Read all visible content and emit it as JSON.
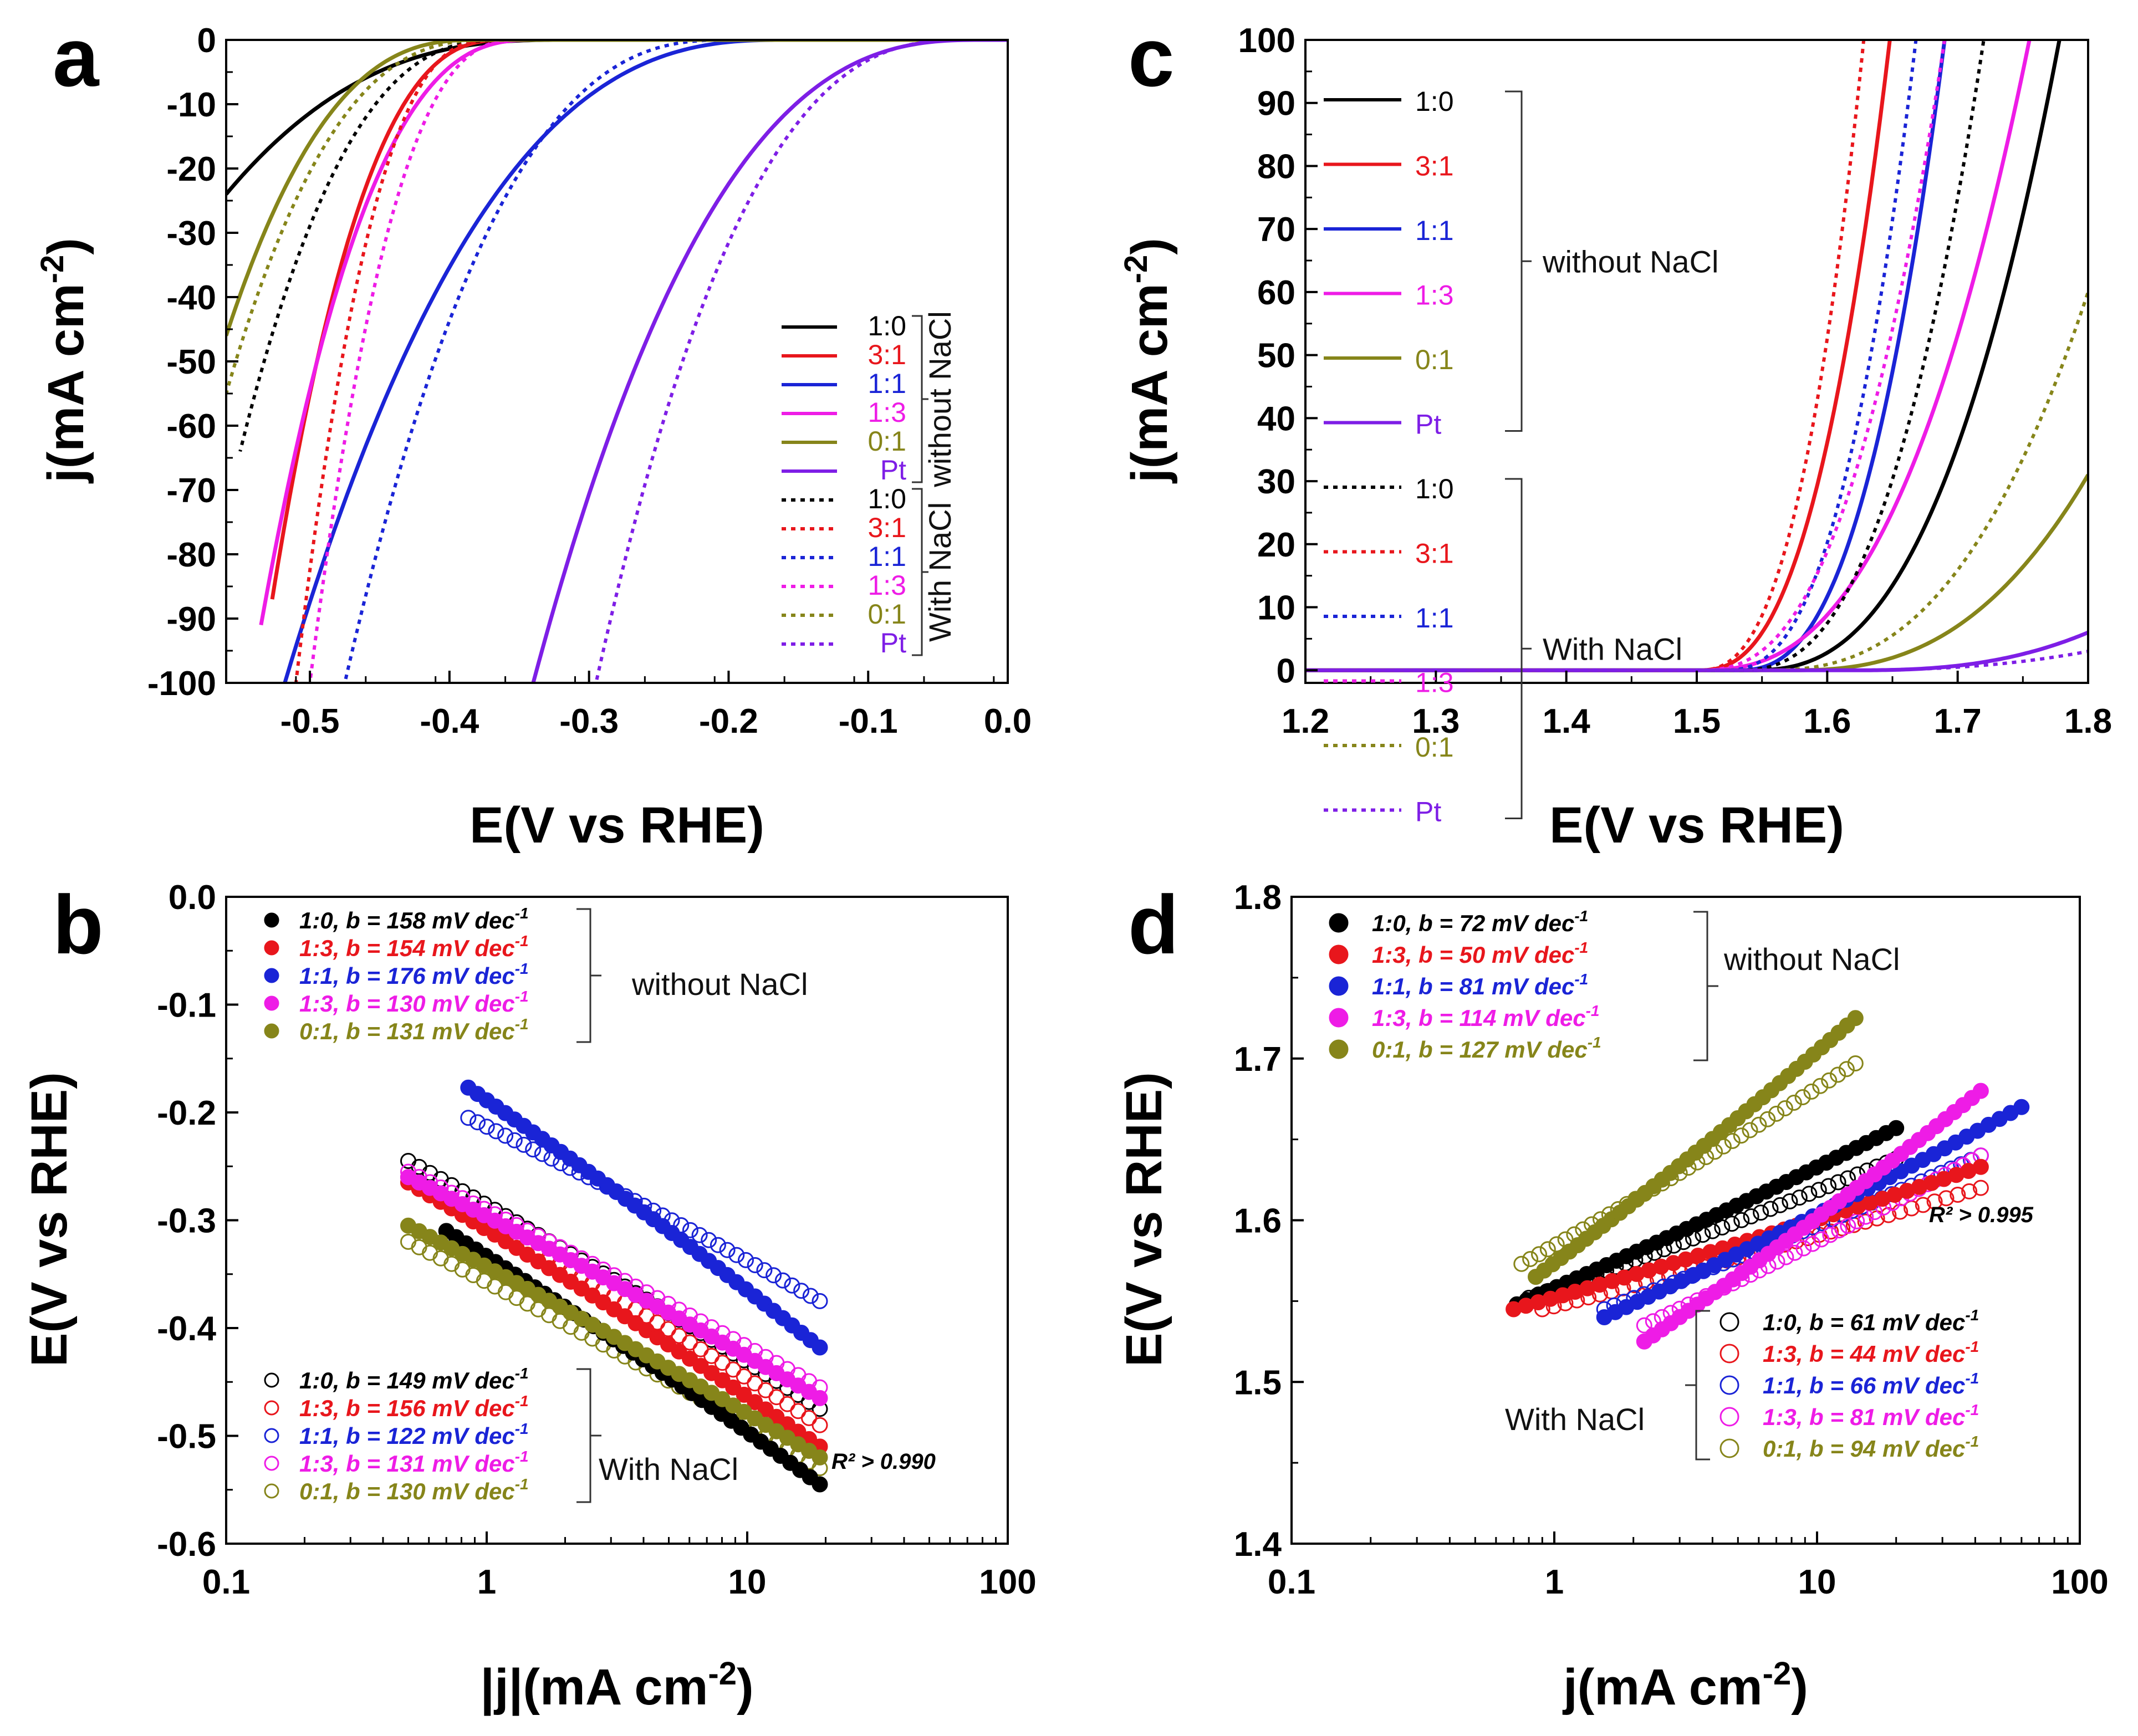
{
  "colors": {
    "black": "#000000",
    "red": "#e8161c",
    "blue": "#1a24d6",
    "magenta": "#ee1ce6",
    "olive": "#86851a",
    "purple": "#7e1ee6"
  },
  "chart_data": [
    {
      "id": "a",
      "panel_label": "a",
      "type": "line",
      "xlabel": "E(V vs RHE)",
      "ylabel": "j(mA cm",
      "ylabel_sup": "-2",
      "ylabel_end": ")",
      "xlim": [
        -0.56,
        0.0
      ],
      "ylim": [
        -100,
        0
      ],
      "x_ticks": [
        "-0.5",
        "-0.4",
        "-0.3",
        "-0.2",
        "-0.1",
        "0.0"
      ],
      "y_ticks": [
        "0",
        "-10",
        "-20",
        "-30",
        "-40",
        "-50",
        "-60",
        "-70",
        "-80",
        "-90",
        "-100"
      ],
      "legend_labels": [
        "1:0",
        "3:1",
        "1:1",
        "1:3",
        "0:1",
        "Pt",
        "1:0",
        "3:1",
        "1:1",
        "1:3",
        "0:1",
        "Pt"
      ],
      "group_labels": [
        "without NaCl",
        "With NaCl"
      ],
      "series": [
        {
          "name": "1:0",
          "group": "without NaCl",
          "style": "solid",
          "color": "black",
          "onset": -0.32,
          "end_x": -0.56,
          "end_y": -24
        },
        {
          "name": "3:1",
          "group": "without NaCl",
          "style": "solid",
          "color": "red",
          "onset": -0.36,
          "end_x": -0.527,
          "end_y": -87
        },
        {
          "name": "1:1",
          "group": "without NaCl",
          "style": "solid",
          "color": "blue",
          "onset": -0.16,
          "end_x": -0.518,
          "end_y": -100
        },
        {
          "name": "1:3",
          "group": "without NaCl",
          "style": "solid",
          "color": "magenta",
          "onset": -0.34,
          "end_x": -0.535,
          "end_y": -91
        },
        {
          "name": "0:1",
          "group": "without NaCl",
          "style": "solid",
          "color": "olive",
          "onset": -0.38,
          "end_x": -0.56,
          "end_y": -46
        },
        {
          "name": "Pt",
          "group": "without NaCl",
          "style": "solid",
          "color": "purple",
          "onset": -0.02,
          "end_x": -0.34,
          "end_y": -100
        },
        {
          "name": "1:0",
          "group": "With NaCl",
          "style": "dotted",
          "color": "black",
          "onset": -0.36,
          "end_x": -0.55,
          "end_y": -64
        },
        {
          "name": "3:1",
          "group": "With NaCl",
          "style": "dotted",
          "color": "red",
          "onset": -0.37,
          "end_x": -0.51,
          "end_y": -100
        },
        {
          "name": "1:1",
          "group": "With NaCl",
          "style": "dotted",
          "color": "blue",
          "onset": -0.2,
          "end_x": -0.475,
          "end_y": -100
        },
        {
          "name": "1:3",
          "group": "With NaCl",
          "style": "dotted",
          "color": "magenta",
          "onset": -0.35,
          "end_x": -0.5,
          "end_y": -100
        },
        {
          "name": "0:1",
          "group": "With NaCl",
          "style": "dotted",
          "color": "olive",
          "onset": -0.37,
          "end_x": -0.56,
          "end_y": -55
        },
        {
          "name": "Pt",
          "group": "With NaCl",
          "style": "dotted",
          "color": "purple",
          "onset": -0.03,
          "end_x": -0.295,
          "end_y": -100
        }
      ]
    },
    {
      "id": "b",
      "panel_label": "b",
      "type": "scatter",
      "xscale": "log",
      "xlabel": "|j|(mA cm",
      "xlabel_sup": "-2",
      "xlabel_end": ")",
      "ylabel": "E(V vs RHE)",
      "xlim": [
        0.1,
        100
      ],
      "ylim": [
        -0.6,
        0.0
      ],
      "x_ticks": [
        "0.1",
        "1",
        "10",
        "100"
      ],
      "y_ticks": [
        "0.0",
        "-0.1",
        "-0.2",
        "-0.3",
        "-0.4",
        "-0.5",
        "-0.6"
      ],
      "legend_labels": [
        "1:0, b = 158 mV dec-1",
        "1:3, b = 154 mV dec-1",
        "1:1, b = 176 mV dec-1",
        "1:3, b = 130 mV dec-1",
        "0:1, b = 131 mV dec-1",
        "1:0, b = 149 mV dec-1",
        "1:3, b = 156 mV dec-1",
        "1:1, b = 122 mV dec-1",
        "1:3, b = 131 mV dec-1",
        "0:1, b = 130 mV dec-1"
      ],
      "group_labels": [
        "without NaCl",
        "With NaCl"
      ],
      "annotation": "R² > 0.990",
      "series": [
        {
          "name": "1:0",
          "b": 158,
          "group": "without NaCl",
          "filled": true,
          "color": "black",
          "x0": 0.7,
          "x1": 19,
          "y0": -0.31,
          "y1": -0.545
        },
        {
          "name": "1:3",
          "b": 154,
          "group": "without NaCl",
          "filled": true,
          "color": "red",
          "x0": 0.5,
          "x1": 19,
          "y0": -0.265,
          "y1": -0.51
        },
        {
          "name": "1:1",
          "b": 176,
          "group": "without NaCl",
          "filled": true,
          "color": "blue",
          "x0": 0.85,
          "x1": 19,
          "y0": -0.177,
          "y1": -0.418
        },
        {
          "name": "1:3",
          "b": 130,
          "group": "without NaCl",
          "filled": true,
          "color": "magenta",
          "x0": 0.5,
          "x1": 19,
          "y0": -0.26,
          "y1": -0.465
        },
        {
          "name": "0:1",
          "b": 131,
          "group": "without NaCl",
          "filled": true,
          "color": "olive",
          "x0": 0.5,
          "x1": 19,
          "y0": -0.305,
          "y1": -0.52
        },
        {
          "name": "1:0",
          "b": 149,
          "group": "With NaCl",
          "filled": false,
          "color": "black",
          "x0": 0.5,
          "x1": 19,
          "y0": -0.245,
          "y1": -0.475
        },
        {
          "name": "1:3",
          "b": 156,
          "group": "With NaCl",
          "filled": false,
          "color": "red",
          "x0": 0.5,
          "x1": 19,
          "y0": -0.26,
          "y1": -0.49
        },
        {
          "name": "1:1",
          "b": 122,
          "group": "With NaCl",
          "filled": false,
          "color": "blue",
          "x0": 0.85,
          "x1": 19,
          "y0": -0.205,
          "y1": -0.375
        },
        {
          "name": "1:3",
          "b": 131,
          "group": "With NaCl",
          "filled": false,
          "color": "magenta",
          "x0": 0.5,
          "x1": 19,
          "y0": -0.255,
          "y1": -0.455
        },
        {
          "name": "0:1",
          "b": 130,
          "group": "With NaCl",
          "filled": false,
          "color": "olive",
          "x0": 0.5,
          "x1": 19,
          "y0": -0.32,
          "y1": -0.53
        }
      ]
    },
    {
      "id": "c",
      "panel_label": "c",
      "type": "line",
      "xlabel": "E(V vs RHE)",
      "ylabel": "j(mA cm",
      "ylabel_sup": "-2",
      "ylabel_end": ")",
      "xlim": [
        1.2,
        1.8
      ],
      "ylim": [
        -2,
        100
      ],
      "x_ticks": [
        "1.2",
        "1.3",
        "1.4",
        "1.5",
        "1.6",
        "1.7",
        "1.8"
      ],
      "y_ticks": [
        "0",
        "10",
        "20",
        "30",
        "40",
        "50",
        "60",
        "70",
        "80",
        "90",
        "100"
      ],
      "legend_labels": [
        "1:0",
        "3:1",
        "1:1",
        "1:3",
        "0:1",
        "Pt",
        "1:0",
        "3:1",
        "1:1",
        "1:3",
        "0:1",
        "Pt"
      ],
      "group_labels": [
        "without NaCl",
        "With NaCl"
      ],
      "series": [
        {
          "name": "1:0",
          "group": "without NaCl",
          "style": "solid",
          "color": "black",
          "onset": 1.54,
          "end_x": 1.778,
          "end_y": 100
        },
        {
          "name": "3:1",
          "group": "without NaCl",
          "style": "solid",
          "color": "red",
          "onset": 1.5,
          "end_x": 1.648,
          "end_y": 100
        },
        {
          "name": "1:1",
          "group": "without NaCl",
          "style": "solid",
          "color": "blue",
          "onset": 1.53,
          "end_x": 1.69,
          "end_y": 100
        },
        {
          "name": "1:3",
          "group": "without NaCl",
          "style": "solid",
          "color": "magenta",
          "onset": 1.5,
          "end_x": 1.755,
          "end_y": 100
        },
        {
          "name": "0:1",
          "group": "without NaCl",
          "style": "solid",
          "color": "olive",
          "onset": 1.57,
          "end_x": 1.8,
          "end_y": 31
        },
        {
          "name": "Pt",
          "group": "without NaCl",
          "style": "solid",
          "color": "purple",
          "onset": 1.62,
          "end_x": 1.8,
          "end_y": 6
        },
        {
          "name": "1:0",
          "group": "With NaCl",
          "style": "dotted",
          "color": "black",
          "onset": 1.53,
          "end_x": 1.72,
          "end_y": 100
        },
        {
          "name": "3:1",
          "group": "With NaCl",
          "style": "dotted",
          "color": "red",
          "onset": 1.5,
          "end_x": 1.628,
          "end_y": 100
        },
        {
          "name": "1:1",
          "group": "With NaCl",
          "style": "dotted",
          "color": "blue",
          "onset": 1.52,
          "end_x": 1.668,
          "end_y": 100
        },
        {
          "name": "1:3",
          "group": "With NaCl",
          "style": "dotted",
          "color": "magenta",
          "onset": 1.5,
          "end_x": 1.69,
          "end_y": 100
        },
        {
          "name": "0:1",
          "group": "With NaCl",
          "style": "dotted",
          "color": "olive",
          "onset": 1.55,
          "end_x": 1.8,
          "end_y": 60
        },
        {
          "name": "Pt",
          "group": "With NaCl",
          "style": "dotted",
          "color": "purple",
          "onset": 1.6,
          "end_x": 1.8,
          "end_y": 3
        }
      ]
    },
    {
      "id": "d",
      "panel_label": "d",
      "type": "scatter",
      "xscale": "log",
      "xlabel": "j(mA cm",
      "xlabel_sup": "-2",
      "xlabel_end": ")",
      "ylabel": "E(V vs RHE)",
      "xlim": [
        0.1,
        100
      ],
      "ylim": [
        1.4,
        1.8
      ],
      "x_ticks": [
        "0.1",
        "1",
        "10",
        "100"
      ],
      "y_ticks": [
        "1.4",
        "1.5",
        "1.6",
        "1.7",
        "1.8"
      ],
      "legend_labels": [
        "1:0, b = 72 mV dec-1",
        "1:3, b = 50 mV dec-1",
        "1:1, b = 81 mV dec-1",
        "1:3, b = 114 mV dec-1",
        "0:1, b = 127 mV dec-1",
        "1:0, b = 61 mV dec-1",
        "1:3, b = 44 mV dec-1",
        "1:1, b = 66 mV dec-1",
        "1:3, b = 81 mV dec-1",
        "0:1, b = 94 mV dec-1"
      ],
      "group_labels": [
        "without NaCl",
        "With NaCl"
      ],
      "annotation": "R² > 0.995",
      "series": [
        {
          "name": "1:0",
          "b": 72,
          "group": "without NaCl",
          "filled": true,
          "color": "black",
          "x0": 0.72,
          "x1": 20,
          "y0": 1.548,
          "y1": 1.657
        },
        {
          "name": "1:3",
          "b": 50,
          "group": "without NaCl",
          "filled": true,
          "color": "red",
          "x0": 0.7,
          "x1": 42,
          "y0": 1.545,
          "y1": 1.633
        },
        {
          "name": "1:1",
          "b": 81,
          "group": "without NaCl",
          "filled": true,
          "color": "blue",
          "x0": 1.55,
          "x1": 60,
          "y0": 1.54,
          "y1": 1.67
        },
        {
          "name": "1:3",
          "b": 114,
          "group": "without NaCl",
          "filled": true,
          "color": "magenta",
          "x0": 2.2,
          "x1": 42,
          "y0": 1.525,
          "y1": 1.68
        },
        {
          "name": "0:1",
          "b": 127,
          "group": "without NaCl",
          "filled": true,
          "color": "olive",
          "x0": 0.85,
          "x1": 14,
          "y0": 1.565,
          "y1": 1.725
        },
        {
          "name": "1:0",
          "b": 61,
          "group": "With NaCl",
          "filled": false,
          "color": "black",
          "x0": 0.8,
          "x1": 20,
          "y0": 1.552,
          "y1": 1.638
        },
        {
          "name": "1:3",
          "b": 44,
          "group": "With NaCl",
          "filled": false,
          "color": "red",
          "x0": 0.9,
          "x1": 42,
          "y0": 1.545,
          "y1": 1.62
        },
        {
          "name": "1:1",
          "b": 66,
          "group": "With NaCl",
          "filled": false,
          "color": "blue",
          "x0": 1.55,
          "x1": 42,
          "y0": 1.545,
          "y1": 1.64
        },
        {
          "name": "1:3",
          "b": 81,
          "group": "With NaCl",
          "filled": false,
          "color": "magenta",
          "x0": 2.2,
          "x1": 42,
          "y0": 1.535,
          "y1": 1.64
        },
        {
          "name": "0:1",
          "b": 94,
          "group": "With NaCl",
          "filled": false,
          "color": "olive",
          "x0": 0.75,
          "x1": 14,
          "y0": 1.573,
          "y1": 1.697
        }
      ]
    }
  ]
}
